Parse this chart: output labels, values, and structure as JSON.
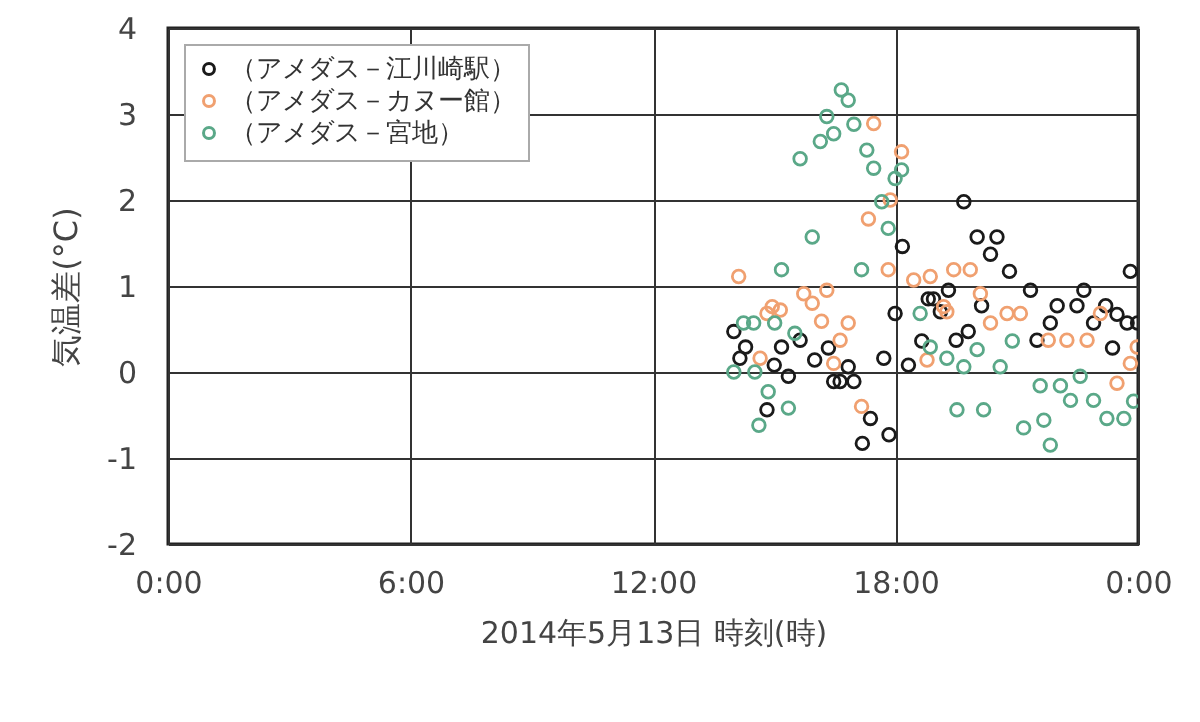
{
  "chart_data": {
    "type": "scatter",
    "xlabel": "2014年5月13日 時刻(時)",
    "ylabel": "気温差(°C)",
    "xlim": [
      0,
      24
    ],
    "ylim": [
      -2,
      4
    ],
    "xticks": [
      {
        "value": 0,
        "label": "0:00"
      },
      {
        "value": 6,
        "label": "6:00"
      },
      {
        "value": 12,
        "label": "12:00"
      },
      {
        "value": 18,
        "label": "18:00"
      },
      {
        "value": 24,
        "label": "0:00"
      }
    ],
    "yticks": [
      -2,
      -1,
      0,
      1,
      2,
      3,
      4
    ],
    "grid": true,
    "legend": "top left",
    "marker": "circle",
    "series": [
      {
        "name": "（アメダス－江川崎駅）",
        "color": "#1a1a1a",
        "x": [
          14.0,
          14.15,
          14.29,
          14.82,
          15.0,
          15.18,
          15.35,
          15.64,
          16.0,
          16.34,
          16.47,
          16.63,
          16.83,
          16.97,
          17.18,
          17.38,
          17.71,
          17.84,
          17.99,
          18.17,
          18.32,
          18.65,
          18.81,
          18.94,
          19.11,
          19.31,
          19.5,
          19.69,
          19.8,
          20.02,
          20.13,
          20.35,
          20.51,
          20.82,
          21.34,
          21.5,
          21.83,
          22.0,
          22.49,
          22.66,
          22.9,
          23.2,
          23.37,
          23.48,
          23.73,
          23.81,
          23.99
        ],
        "values": [
          0.47,
          0.16,
          0.29,
          -0.44,
          0.08,
          0.29,
          -0.05,
          0.37,
          0.14,
          0.28,
          -0.11,
          -0.11,
          0.06,
          -0.11,
          -0.83,
          -0.54,
          0.16,
          -0.73,
          0.68,
          1.46,
          0.08,
          0.36,
          0.85,
          0.85,
          0.7,
          0.95,
          0.37,
          1.98,
          0.47,
          1.57,
          0.77,
          1.37,
          1.57,
          1.17,
          0.95,
          0.37,
          0.57,
          0.77,
          0.77,
          0.95,
          0.57,
          0.77,
          0.28,
          0.67,
          0.57,
          1.17,
          0.57
        ]
      },
      {
        "name": "（アメダス－カヌー館）",
        "color": "#f0a070",
        "x": [
          14.12,
          14.65,
          14.82,
          14.95,
          15.15,
          15.73,
          15.94,
          16.17,
          16.3,
          16.47,
          16.63,
          16.83,
          17.16,
          17.33,
          17.46,
          17.82,
          17.87,
          18.15,
          18.45,
          18.78,
          18.86,
          19.19,
          19.27,
          19.44,
          19.85,
          20.1,
          20.35,
          20.76,
          21.09,
          21.78,
          22.24,
          22.74,
          23.07,
          23.48,
          23.81,
          23.98
        ],
        "values": [
          1.11,
          0.16,
          0.68,
          0.76,
          0.72,
          0.91,
          0.8,
          0.59,
          0.95,
          0.1,
          0.37,
          0.57,
          -0.4,
          1.78,
          2.89,
          1.19,
          2.0,
          2.56,
          1.07,
          0.14,
          1.11,
          0.76,
          0.7,
          1.19,
          1.19,
          0.91,
          0.57,
          0.68,
          0.68,
          0.37,
          0.37,
          0.37,
          0.68,
          -0.13,
          0.1,
          0.29
        ]
      },
      {
        "name": "（アメダス－宮地）",
        "color": "#5aa888",
        "x": [
          14.0,
          14.24,
          14.49,
          14.52,
          14.62,
          14.85,
          15.01,
          15.18,
          15.35,
          15.51,
          15.64,
          15.94,
          16.14,
          16.3,
          16.47,
          16.66,
          16.83,
          16.97,
          17.16,
          17.29,
          17.46,
          17.66,
          17.82,
          17.99,
          18.15,
          18.61,
          18.86,
          19.27,
          19.52,
          19.69,
          20.02,
          20.18,
          20.59,
          20.89,
          21.17,
          21.58,
          21.67,
          21.83,
          22.08,
          22.33,
          22.57,
          22.9,
          23.23,
          23.65,
          23.89
        ],
        "values": [
          0.0,
          0.57,
          0.57,
          0.0,
          -0.62,
          -0.23,
          0.57,
          1.19,
          -0.42,
          0.45,
          2.48,
          1.57,
          2.68,
          2.97,
          2.77,
          3.28,
          3.16,
          2.88,
          1.19,
          2.58,
          2.37,
          1.98,
          1.67,
          2.25,
          2.35,
          0.68,
          0.29,
          0.16,
          -0.44,
          0.06,
          0.26,
          -0.44,
          0.06,
          0.36,
          -0.65,
          -0.16,
          -0.56,
          -0.85,
          -0.16,
          -0.33,
          -0.05,
          -0.33,
          -0.54,
          -0.54,
          -0.34
        ]
      }
    ]
  }
}
